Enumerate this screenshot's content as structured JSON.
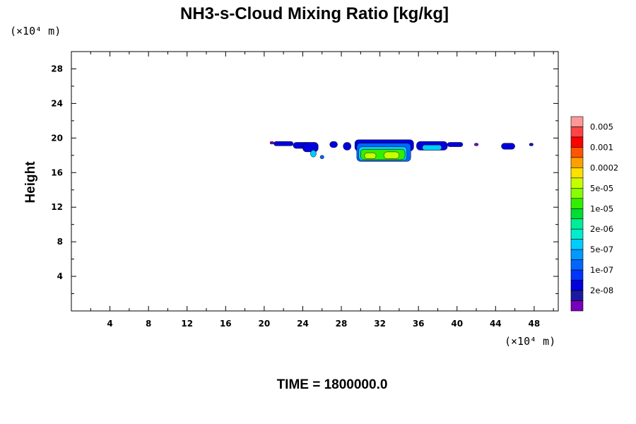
{
  "chart_data": {
    "type": "heatmap",
    "title": "NH3-s-Cloud Mixing Ratio [kg/kg]",
    "xlabel": "",
    "ylabel": "Height",
    "x_unit": "(×10⁴ m)",
    "y_unit": "(×10⁴ m)",
    "xlim": [
      0,
      50.5
    ],
    "ylim": [
      0,
      30
    ],
    "x_ticks": [
      4,
      8,
      12,
      16,
      20,
      24,
      28,
      32,
      36,
      40,
      44,
      48
    ],
    "x_tick_labels": [
      "4",
      "8",
      "12",
      "16",
      "20",
      "24",
      "28",
      "32",
      "36",
      "40",
      "44",
      "48"
    ],
    "y_ticks": [
      4,
      8,
      12,
      16,
      20,
      24,
      28
    ],
    "y_tick_labels": [
      "4",
      "8",
      "12",
      "16",
      "20",
      "24",
      "28"
    ],
    "grid": false,
    "time_label": "TIME = 1800000.0",
    "colorbar": {
      "colors": [
        "#ff9999",
        "#ff4444",
        "#ff0000",
        "#ff5500",
        "#ffa000",
        "#ffe000",
        "#c8ff00",
        "#88ff00",
        "#33ee00",
        "#00dd33",
        "#00ee99",
        "#00eecc",
        "#00ccff",
        "#0099ff",
        "#0066ff",
        "#0033ff",
        "#0000dd",
        "#1a1aa0",
        "#7700bb"
      ],
      "labels": [
        "0.005",
        "0.001",
        "0.0002",
        "5e-05",
        "1e-05",
        "2e-06",
        "5e-07",
        "1e-07",
        "2e-08"
      ]
    },
    "regions": [
      {
        "level": "2e-08",
        "x": [
          20.6,
          21.0
        ],
        "y": [
          19.3,
          19.6
        ],
        "color": "#7700bb"
      },
      {
        "level": "1e-07",
        "x": [
          21.0,
          23.0
        ],
        "y": [
          19.1,
          19.6
        ],
        "color": "#0000dd"
      },
      {
        "level": "1e-07",
        "x": [
          23.0,
          24.7
        ],
        "y": [
          18.8,
          19.5
        ],
        "color": "#0000dd"
      },
      {
        "level": "1e-07",
        "x": [
          24.0,
          25.6
        ],
        "y": [
          18.4,
          19.5
        ],
        "color": "#0000dd"
      },
      {
        "level": "5e-07",
        "x": [
          24.8,
          25.4
        ],
        "y": [
          17.8,
          18.6
        ],
        "color": "#00ccff"
      },
      {
        "level": "1e-07",
        "x": [
          25.8,
          26.2
        ],
        "y": [
          17.6,
          18.0
        ],
        "color": "#0066ff"
      },
      {
        "level": "1e-07",
        "x": [
          26.8,
          27.6
        ],
        "y": [
          18.9,
          19.6
        ],
        "color": "#0000dd"
      },
      {
        "level": "1e-07",
        "x": [
          28.2,
          29.0
        ],
        "y": [
          18.6,
          19.5
        ],
        "color": "#0000dd"
      },
      {
        "level": "1e-07",
        "x": [
          29.4,
          35.5
        ],
        "y": [
          18.5,
          19.8
        ],
        "color": "#0000dd"
      },
      {
        "level": "1e-07",
        "x": [
          29.6,
          35.2
        ],
        "y": [
          17.3,
          19.4
        ],
        "color": "#0066ff"
      },
      {
        "level": "5e-07",
        "x": [
          29.8,
          34.8
        ],
        "y": [
          17.4,
          19.0
        ],
        "color": "#00ccff"
      },
      {
        "level": "1e-05",
        "x": [
          30.0,
          34.6
        ],
        "y": [
          17.5,
          18.7
        ],
        "color": "#33ee00"
      },
      {
        "level": "5e-05",
        "x": [
          30.4,
          31.6
        ],
        "y": [
          17.6,
          18.3
        ],
        "color": "#c8ff00"
      },
      {
        "level": "5e-05",
        "x": [
          32.4,
          34.0
        ],
        "y": [
          17.6,
          18.4
        ],
        "color": "#c8ff00"
      },
      {
        "level": "1e-07",
        "x": [
          35.8,
          39.0
        ],
        "y": [
          18.6,
          19.6
        ],
        "color": "#0000dd"
      },
      {
        "level": "5e-07",
        "x": [
          36.4,
          38.4
        ],
        "y": [
          18.6,
          19.2
        ],
        "color": "#00ccff"
      },
      {
        "level": "1e-07",
        "x": [
          39.0,
          40.6
        ],
        "y": [
          19.0,
          19.5
        ],
        "color": "#0000dd"
      },
      {
        "level": "2e-08",
        "x": [
          41.8,
          42.2
        ],
        "y": [
          19.1,
          19.4
        ],
        "color": "#7700bb"
      },
      {
        "level": "1e-07",
        "x": [
          44.6,
          46.0
        ],
        "y": [
          18.7,
          19.4
        ],
        "color": "#0000dd"
      },
      {
        "level": "1e-07",
        "x": [
          47.5,
          47.9
        ],
        "y": [
          19.1,
          19.4
        ],
        "color": "#0000dd"
      }
    ]
  }
}
